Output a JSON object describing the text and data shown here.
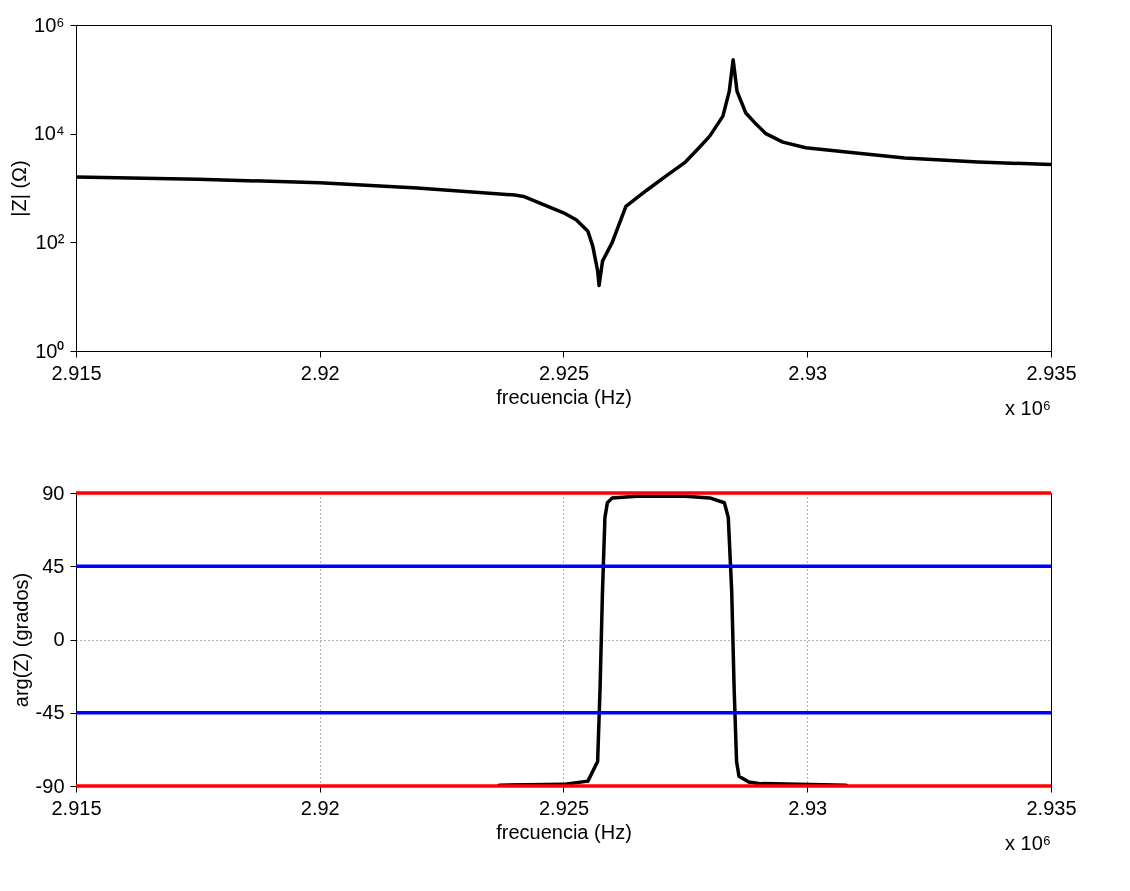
{
  "chart_data": [
    {
      "type": "line",
      "xlabel": "frecuencia (Hz)",
      "ylabel": "|Z| (Ω)",
      "log": "y",
      "xlim": [
        2.915,
        2.935
      ],
      "xticks": [
        2.915,
        2.92,
        2.925,
        2.93,
        2.935
      ],
      "ylim": [
        1,
        1000000
      ],
      "yticks": [
        {
          "value": 1,
          "label": "10⁰"
        },
        {
          "value": 100,
          "label": "10²"
        },
        {
          "value": 10000,
          "label": "10⁴"
        },
        {
          "value": 1000000,
          "label": "10⁶"
        }
      ],
      "annotations": [
        "x 10⁶"
      ],
      "series": [
        {
          "color": "#000000",
          "x": [
            2.915,
            2.9175,
            2.92,
            2.922,
            2.924,
            2.92418,
            2.925,
            2.92526,
            2.9255,
            2.9256,
            2.9257,
            2.92573,
            2.9258,
            2.926,
            2.92628,
            2.9267,
            2.9271,
            2.9275,
            2.92778,
            2.928,
            2.92827,
            2.9284,
            2.92848,
            2.92856,
            2.92874,
            2.92895,
            2.92915,
            2.9295,
            2.92997,
            2.931,
            2.932,
            2.9335,
            2.935
          ],
          "values": [
            1600,
            1450,
            1250,
            1000,
            740,
            700,
            350,
            260,
            160,
            85,
            30,
            16,
            45,
            100,
            460,
            900,
            1650,
            3000,
            5500,
            9000,
            21000,
            60000,
            230000,
            60000,
            24000,
            15000,
            10000,
            7000,
            5500,
            4400,
            3550,
            3000,
            2700
          ]
        }
      ]
    },
    {
      "type": "line",
      "xlabel": "frecuencia (Hz)",
      "ylabel": "arg(Z) (grados)",
      "grid": true,
      "xlim": [
        2.915,
        2.935
      ],
      "xticks": [
        2.915,
        2.92,
        2.925,
        2.93,
        2.935
      ],
      "ylim": [
        -90,
        90
      ],
      "yticks": [
        -90,
        -45,
        0,
        45,
        90
      ],
      "annotations": [
        "x 10⁶"
      ],
      "ref_lines": [
        {
          "axis": "y",
          "value": 90,
          "color": "#ff0000"
        },
        {
          "axis": "y",
          "value": 45,
          "color": "#0000ff"
        },
        {
          "axis": "y",
          "value": -45,
          "color": "#0000ff"
        },
        {
          "axis": "y",
          "value": -90,
          "color": "#ff0000"
        }
      ],
      "series": [
        {
          "color": "#000000",
          "x": [
            2.92368,
            2.925,
            2.9255,
            2.9257,
            2.92575,
            2.9258,
            2.92585,
            2.9259,
            2.926,
            2.9265,
            2.9275,
            2.928,
            2.9283,
            2.92838,
            2.92845,
            2.9285,
            2.92855,
            2.9286,
            2.9288,
            2.929,
            2.9308
          ],
          "values": [
            -89.5,
            -89,
            -87,
            -75,
            -30,
            30,
            75,
            84,
            87,
            88,
            88,
            87,
            84,
            75,
            30,
            -30,
            -75,
            -84,
            -87.5,
            -88.5,
            -89.5
          ]
        }
      ]
    }
  ]
}
